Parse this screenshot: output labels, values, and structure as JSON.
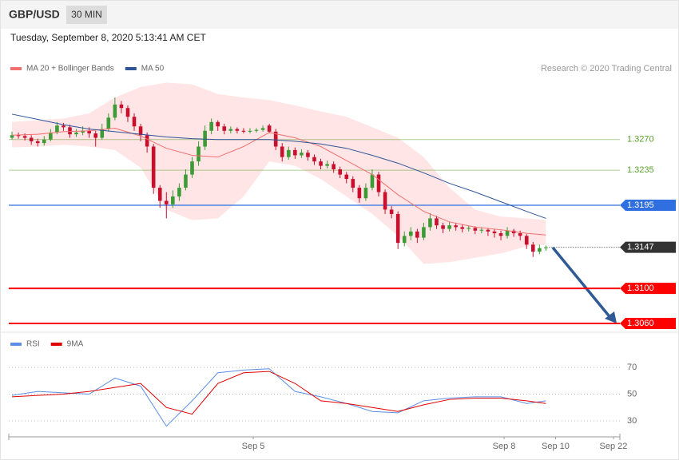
{
  "header": {
    "symbol": "GBP/USD",
    "interval": "30 MIN",
    "timestamp": "Tuesday, September 8, 2020 5:13:41 AM CET"
  },
  "chart_data": [
    {
      "type": "candlestick",
      "credit": "Research © 2020 Trading Central",
      "up_color": "#3d9b35",
      "down_color": "#c8102e",
      "xlim": [
        0,
        95
      ],
      "ylim": [
        1.305,
        1.335
      ],
      "candles": [
        [
          1.3272,
          1.3279,
          1.327,
          1.3275
        ],
        [
          1.3275,
          1.3278,
          1.3271,
          1.3274
        ],
        [
          1.3274,
          1.3277,
          1.3269,
          1.3272
        ],
        [
          1.3272,
          1.3275,
          1.3264,
          1.3268
        ],
        [
          1.3268,
          1.3271,
          1.3262,
          1.3266
        ],
        [
          1.3266,
          1.3274,
          1.3263,
          1.327
        ],
        [
          1.327,
          1.3282,
          1.3268,
          1.3278
        ],
        [
          1.3278,
          1.329,
          1.3276,
          1.3286
        ],
        [
          1.3286,
          1.3289,
          1.328,
          1.3284
        ],
        [
          1.3284,
          1.3287,
          1.3272,
          1.3276
        ],
        [
          1.3276,
          1.3282,
          1.3273,
          1.3278
        ],
        [
          1.3278,
          1.3285,
          1.3275,
          1.328
        ],
        [
          1.328,
          1.3284,
          1.3272,
          1.3277
        ],
        [
          1.3277,
          1.328,
          1.3262,
          1.3272
        ],
        [
          1.3272,
          1.3288,
          1.327,
          1.3282
        ],
        [
          1.3282,
          1.33,
          1.3279,
          1.3295
        ],
        [
          1.3295,
          1.3318,
          1.3292,
          1.331
        ],
        [
          1.331,
          1.3314,
          1.33,
          1.3306
        ],
        [
          1.3306,
          1.3309,
          1.329,
          1.3296
        ],
        [
          1.3296,
          1.33,
          1.328,
          1.3285
        ],
        [
          1.3285,
          1.3288,
          1.3268,
          1.3275
        ],
        [
          1.3275,
          1.3278,
          1.3255,
          1.3262
        ],
        [
          1.3262,
          1.3265,
          1.3208,
          1.3215
        ],
        [
          1.3215,
          1.3218,
          1.3192,
          1.32
        ],
        [
          1.32,
          1.321,
          1.318,
          1.3196
        ],
        [
          1.3196,
          1.3212,
          1.3192,
          1.3205
        ],
        [
          1.3205,
          1.322,
          1.32,
          1.3215
        ],
        [
          1.3215,
          1.3236,
          1.3212,
          1.323
        ],
        [
          1.323,
          1.325,
          1.3226,
          1.3245
        ],
        [
          1.3245,
          1.3268,
          1.324,
          1.3262
        ],
        [
          1.3262,
          1.3286,
          1.3258,
          1.328
        ],
        [
          1.328,
          1.3294,
          1.3276,
          1.329
        ],
        [
          1.329,
          1.3292,
          1.328,
          1.3285
        ],
        [
          1.3285,
          1.3288,
          1.3276,
          1.328
        ],
        [
          1.328,
          1.3285,
          1.3277,
          1.3282
        ],
        [
          1.3282,
          1.3284,
          1.3277,
          1.328
        ],
        [
          1.328,
          1.3283,
          1.3277,
          1.3279
        ],
        [
          1.3279,
          1.3283,
          1.3277,
          1.328
        ],
        [
          1.328,
          1.3283,
          1.3278,
          1.3281
        ],
        [
          1.3281,
          1.3286,
          1.3279,
          1.3283
        ],
        [
          1.3286,
          1.3288,
          1.3277,
          1.3279
        ],
        [
          1.3279,
          1.3282,
          1.3258,
          1.3262
        ],
        [
          1.3262,
          1.3266,
          1.3245,
          1.325
        ],
        [
          1.325,
          1.3262,
          1.3247,
          1.3258
        ],
        [
          1.3258,
          1.3261,
          1.3248,
          1.3252
        ],
        [
          1.3252,
          1.3259,
          1.3249,
          1.3255
        ],
        [
          1.3255,
          1.3258,
          1.3246,
          1.325
        ],
        [
          1.325,
          1.3253,
          1.3241,
          1.3245
        ],
        [
          1.3245,
          1.3248,
          1.3236,
          1.324
        ],
        [
          1.324,
          1.3246,
          1.3237,
          1.3242
        ],
        [
          1.3242,
          1.3245,
          1.3232,
          1.3236
        ],
        [
          1.3236,
          1.3239,
          1.3226,
          1.323
        ],
        [
          1.323,
          1.3233,
          1.322,
          1.3225
        ],
        [
          1.3225,
          1.3228,
          1.321,
          1.3215
        ],
        [
          1.3215,
          1.3218,
          1.3198,
          1.3203
        ],
        [
          1.3203,
          1.322,
          1.32,
          1.3215
        ],
        [
          1.3215,
          1.3236,
          1.3212,
          1.323
        ],
        [
          1.323,
          1.3233,
          1.3205,
          1.321
        ],
        [
          1.321,
          1.3213,
          1.3185,
          1.319
        ],
        [
          1.319,
          1.3194,
          1.318,
          1.3185
        ],
        [
          1.3185,
          1.3188,
          1.3145,
          1.3152
        ],
        [
          1.3152,
          1.3165,
          1.3148,
          1.316
        ],
        [
          1.316,
          1.317,
          1.3155,
          1.3165
        ],
        [
          1.3165,
          1.3168,
          1.3152,
          1.3158
        ],
        [
          1.3158,
          1.3175,
          1.3155,
          1.317
        ],
        [
          1.317,
          1.3186,
          1.3166,
          1.318
        ],
        [
          1.318,
          1.3183,
          1.3168,
          1.3172
        ],
        [
          1.3172,
          1.3175,
          1.3163,
          1.3168
        ],
        [
          1.3168,
          1.3176,
          1.3165,
          1.3172
        ],
        [
          1.3172,
          1.3175,
          1.3166,
          1.317
        ],
        [
          1.317,
          1.3173,
          1.3164,
          1.3168
        ],
        [
          1.3168,
          1.3172,
          1.3165,
          1.3169
        ],
        [
          1.3169,
          1.3171,
          1.3162,
          1.3166
        ],
        [
          1.3166,
          1.317,
          1.3163,
          1.3167
        ],
        [
          1.3167,
          1.3169,
          1.316,
          1.3165
        ],
        [
          1.3165,
          1.3168,
          1.3158,
          1.3163
        ],
        [
          1.3163,
          1.3166,
          1.3155,
          1.316
        ],
        [
          1.316,
          1.317,
          1.3157,
          1.3166
        ],
        [
          1.3166,
          1.3168,
          1.3159,
          1.3163
        ],
        [
          1.3163,
          1.3166,
          1.3155,
          1.316
        ],
        [
          1.316,
          1.3162,
          1.3145,
          1.315
        ],
        [
          1.315,
          1.3153,
          1.3136,
          1.3142
        ],
        [
          1.3142,
          1.315,
          1.3139,
          1.3146
        ],
        [
          1.3146,
          1.3149,
          1.3143,
          1.3147
        ]
      ],
      "series": [
        {
          "name": "MA 20 + Bollinger Bands",
          "color": "#f07070",
          "band_color": "#ffe0e0",
          "x": [
            0,
            4,
            8,
            12,
            16,
            20,
            24,
            28,
            32,
            36,
            40,
            44,
            48,
            52,
            56,
            60,
            64,
            68,
            72,
            76,
            80,
            83
          ],
          "values": [
            1.3275,
            1.3276,
            1.3279,
            1.328,
            1.3283,
            1.3274,
            1.326,
            1.3252,
            1.325,
            1.3262,
            1.3278,
            1.3272,
            1.3262,
            1.3246,
            1.323,
            1.3207,
            1.3188,
            1.3176,
            1.317,
            1.3167,
            1.3163,
            1.3161
          ],
          "upper": [
            1.329,
            1.3292,
            1.3294,
            1.33,
            1.3318,
            1.333,
            1.3335,
            1.3333,
            1.3322,
            1.3318,
            1.3315,
            1.3309,
            1.3302,
            1.3296,
            1.3284,
            1.3272,
            1.325,
            1.3215,
            1.319,
            1.3182,
            1.318,
            1.3178
          ],
          "lower": [
            1.3261,
            1.3262,
            1.3264,
            1.3262,
            1.3258,
            1.3238,
            1.319,
            1.3178,
            1.318,
            1.3205,
            1.3245,
            1.324,
            1.3225,
            1.3205,
            1.3185,
            1.316,
            1.3128,
            1.313,
            1.3135,
            1.314,
            1.3148,
            1.315
          ]
        },
        {
          "name": "MA 50",
          "color": "#2f5597",
          "x": [
            0,
            4,
            8,
            12,
            16,
            20,
            24,
            28,
            32,
            36,
            40,
            44,
            48,
            52,
            56,
            60,
            64,
            68,
            72,
            76,
            80,
            83
          ],
          "values": [
            1.3299,
            1.3293,
            1.3287,
            1.3282,
            1.3279,
            1.3276,
            1.3273,
            1.3271,
            1.327,
            1.327,
            1.327,
            1.3268,
            1.3265,
            1.326,
            1.3252,
            1.3243,
            1.3232,
            1.322,
            1.321,
            1.3199,
            1.3188,
            1.318
          ]
        }
      ],
      "levels": [
        {
          "value": 1.327,
          "label": "1.3270",
          "color": "#5aa02c",
          "tag": false,
          "line": "light"
        },
        {
          "value": 1.3235,
          "label": "1.3235",
          "color": "#5aa02c",
          "tag": false,
          "line": "light"
        },
        {
          "value": 1.3195,
          "label": "1.3195",
          "color": "#2f6fe0",
          "tag": true,
          "line": "solid"
        },
        {
          "value": 1.3147,
          "label": "1.3147",
          "color": "#333333",
          "tag": true,
          "line": "dotted"
        },
        {
          "value": 1.31,
          "label": "1.3100",
          "color": "#ff0000",
          "tag": true,
          "line": "bold"
        },
        {
          "value": 1.306,
          "label": "1.3060",
          "color": "#ff0000",
          "tag": true,
          "line": "bold"
        }
      ]
    },
    {
      "type": "line",
      "xlim": [
        0,
        95
      ],
      "ylim": [
        18,
        82
      ],
      "yticks": [
        30,
        50,
        70
      ],
      "grid": true,
      "xticks": [
        {
          "value": 38,
          "label": "Sep 5"
        },
        {
          "value": 77,
          "label": "Sep 8"
        },
        {
          "value": 85,
          "label": "Sep 10"
        },
        {
          "value": 94,
          "label": "Sep 22"
        }
      ],
      "series": [
        {
          "name": "RSI",
          "color": "#5b8ee6",
          "x": [
            0,
            4,
            8,
            12,
            16,
            20,
            24,
            28,
            32,
            36,
            40,
            44,
            48,
            52,
            56,
            60,
            64,
            68,
            72,
            76,
            80,
            83
          ],
          "values": [
            49,
            52,
            51,
            50,
            62,
            56,
            26,
            45,
            66,
            68,
            69,
            52,
            48,
            43,
            37,
            36,
            45,
            47,
            48,
            48,
            43,
            45
          ]
        },
        {
          "name": "9MA",
          "color": "#e00000",
          "x": [
            0,
            4,
            8,
            12,
            16,
            20,
            24,
            28,
            32,
            36,
            40,
            44,
            48,
            52,
            56,
            60,
            64,
            68,
            72,
            76,
            80,
            83
          ],
          "values": [
            48,
            49,
            50,
            52,
            55,
            58,
            40,
            35,
            58,
            66,
            67,
            58,
            45,
            43,
            40,
            37,
            42,
            46,
            47,
            47,
            45,
            43
          ]
        }
      ]
    }
  ]
}
